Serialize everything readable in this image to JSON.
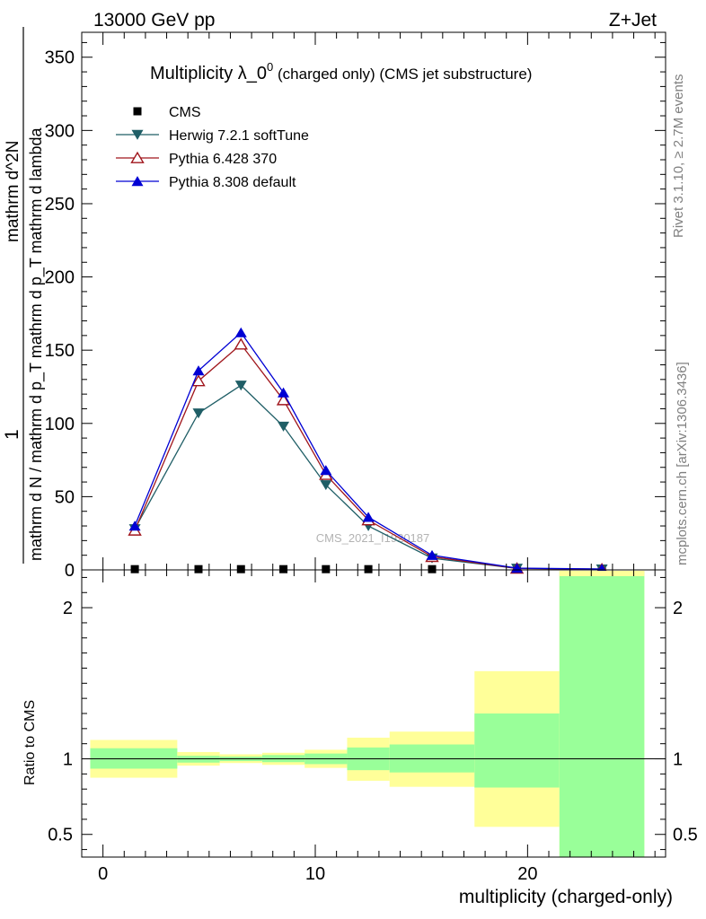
{
  "header": {
    "left": "13000 GeV pp",
    "right": "Z+Jet"
  },
  "side_text": {
    "rivet": "Rivet 3.1.10, ≥ 2.7M events",
    "mcplots": "mcplots.cern.ch [arXiv:1306.3436]"
  },
  "chart_data": [
    {
      "type": "line",
      "title": "Multiplicity λ_0",
      "title_sup": "0",
      "title_suffix": " (charged only) (CMS jet substructure)",
      "ylabel_top_num": "1",
      "ylabel_top_den": "mathrm d N / mathrm d p_T mathrm d p_T mathrm d lambda",
      "ylabel_top_right": "mathrm d^2N",
      "watermark": "CMS_2021_I1920187",
      "xlim": [
        -1,
        26.5
      ],
      "ylim": [
        0,
        367
      ],
      "yticks": [
        0,
        50,
        100,
        150,
        200,
        250,
        300,
        350
      ],
      "ytick_labels": [
        "0",
        "50",
        "100",
        "150",
        "200",
        "250",
        "300",
        "350"
      ],
      "legend_position": "top-left",
      "series": [
        {
          "name": "CMS",
          "marker": "square",
          "color": "#000000",
          "x": [
            1.5,
            4.5,
            6.5,
            8.5,
            10.5,
            12.5,
            15.5,
            19.5,
            23.5
          ],
          "y": [
            0.5,
            0.5,
            0.5,
            0.5,
            0.5,
            0.5,
            0.5,
            0.3,
            0.2
          ]
        },
        {
          "name": "Herwig 7.2.1 softTune",
          "marker": "triangle-down",
          "color": "#1f5e66",
          "x": [
            1.5,
            4.5,
            6.5,
            8.5,
            10.5,
            12.5,
            15.5,
            19.5,
            23.5
          ],
          "y": [
            28,
            107,
            126,
            98,
            58,
            30,
            8,
            1,
            0.5
          ]
        },
        {
          "name": "Pythia 6.428 370",
          "marker": "triangle-up-open",
          "color": "#a0161c",
          "x": [
            1.5,
            4.5,
            6.5,
            8.5,
            10.5,
            12.5,
            15.5,
            19.5,
            23.5
          ],
          "y": [
            27,
            129,
            154,
            116,
            65,
            34,
            9,
            1,
            0.5
          ]
        },
        {
          "name": "Pythia 8.308 default",
          "marker": "triangle-up",
          "color": "#0000d4",
          "x": [
            1.5,
            4.5,
            6.5,
            8.5,
            10.5,
            12.5,
            15.5,
            19.5,
            23.5
          ],
          "y": [
            30,
            136,
            162,
            121,
            68,
            36,
            10,
            1.2,
            0.6
          ]
        }
      ]
    },
    {
      "type": "area",
      "ylabel": "Ratio to CMS",
      "xlabel": "multiplicity (charged-only)",
      "xlim": [
        -1,
        26.5
      ],
      "ylim": [
        0.35,
        2.25
      ],
      "xticks": [
        0,
        10,
        20
      ],
      "xtick_labels": [
        "0",
        "10",
        "20"
      ],
      "yticks": [
        0.5,
        1,
        2
      ],
      "ytick_labels": [
        "0.5",
        "1",
        "2"
      ],
      "reference_line": 1,
      "bins": [
        {
          "x0": -0.6,
          "x1": 3.5,
          "stat": [
            0.935,
            1.07
          ],
          "total": [
            0.875,
            1.125
          ]
        },
        {
          "x0": 3.5,
          "x1": 5.5,
          "stat": [
            0.975,
            1.02
          ],
          "total": [
            0.955,
            1.045
          ]
        },
        {
          "x0": 5.5,
          "x1": 7.5,
          "stat": [
            0.985,
            1.015
          ],
          "total": [
            0.972,
            1.03
          ]
        },
        {
          "x0": 7.5,
          "x1": 9.5,
          "stat": [
            0.978,
            1.025
          ],
          "total": [
            0.96,
            1.04
          ]
        },
        {
          "x0": 9.5,
          "x1": 11.5,
          "stat": [
            0.965,
            1.035
          ],
          "total": [
            0.94,
            1.06
          ]
        },
        {
          "x0": 11.5,
          "x1": 13.5,
          "stat": [
            0.925,
            1.075
          ],
          "total": [
            0.855,
            1.14
          ]
        },
        {
          "x0": 13.5,
          "x1": 17.5,
          "stat": [
            0.91,
            1.095
          ],
          "total": [
            0.815,
            1.18
          ]
        },
        {
          "x0": 17.5,
          "x1": 21.5,
          "stat": [
            0.81,
            1.3
          ],
          "total": [
            0.55,
            1.58
          ]
        },
        {
          "x0": 21.5,
          "x1": 25.5,
          "stat": [
            0.35,
            2.25
          ],
          "total": [
            0.35,
            2.25
          ]
        }
      ],
      "colors": {
        "stat": "#99ff99",
        "total": "#ffff99"
      }
    }
  ]
}
